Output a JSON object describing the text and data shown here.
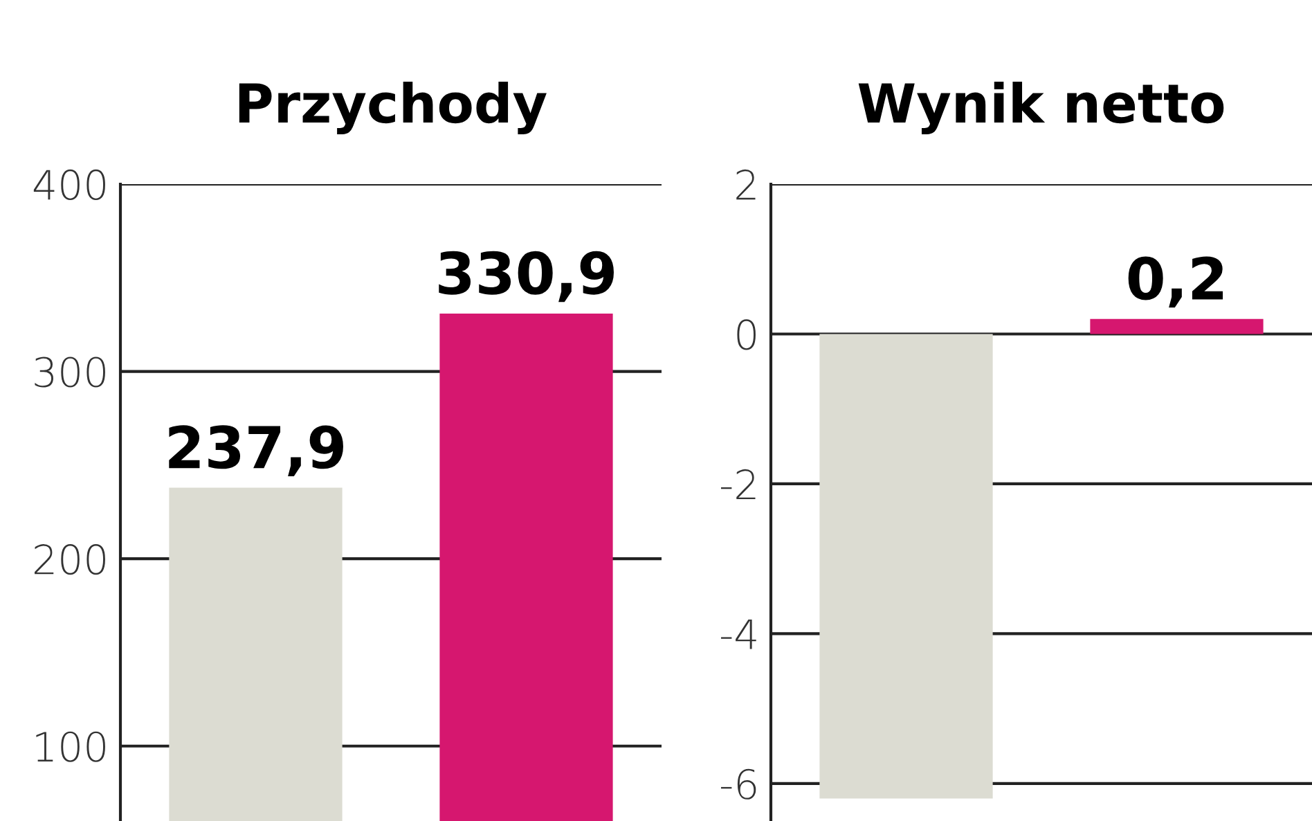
{
  "chart_data": [
    {
      "type": "bar",
      "title": "Przychody",
      "categories": [
        null,
        null
      ],
      "values": [
        237.9,
        330.9
      ],
      "colors": [
        "#dcdcd2",
        "#d6176f"
      ],
      "value_labels": [
        "237,9",
        "330,9"
      ],
      "ylim": [
        60,
        400
      ],
      "yticks": [
        {
          "value": 100,
          "label": "100"
        },
        {
          "value": 200,
          "label": "200"
        },
        {
          "value": 300,
          "label": "300"
        },
        {
          "value": 400,
          "label": "400"
        }
      ],
      "grid": "y"
    },
    {
      "type": "bar",
      "title": "Wynik netto",
      "categories": [
        null,
        null
      ],
      "values": [
        -6.2,
        0.2
      ],
      "colors": [
        "#dcdcd2",
        "#d6176f"
      ],
      "value_labels": [
        null,
        "0,2"
      ],
      "ylim": [
        -6.5,
        2
      ],
      "yticks": [
        -6,
        -4,
        -2,
        0,
        2
      ],
      "grid": "y"
    }
  ]
}
